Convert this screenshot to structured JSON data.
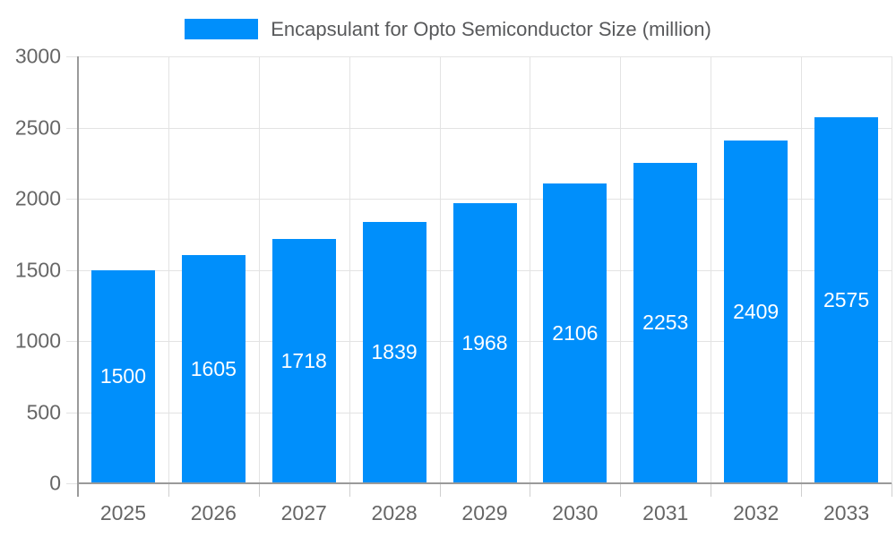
{
  "chart_data": {
    "type": "bar",
    "title": "Encapsulant for Opto Semiconductor Size (million)",
    "categories": [
      "2025",
      "2026",
      "2027",
      "2028",
      "2029",
      "2030",
      "2031",
      "2032",
      "2033"
    ],
    "values": [
      1500,
      1605,
      1718,
      1839,
      1968,
      2106,
      2253,
      2409,
      2575
    ],
    "xlabel": "",
    "ylabel": "",
    "ylim": [
      0,
      3000
    ],
    "yticks": [
      0,
      500,
      1000,
      1500,
      2000,
      2500,
      3000
    ],
    "grid": true,
    "legend_position": "top",
    "data_labels": "inside-center",
    "colors": {
      "bar": "#008FFB",
      "grid": "#e3e3e3",
      "axis": "#9a9a9a",
      "x_tick": "#cfcfcf",
      "tick_label": "#666666",
      "title": "#58595b",
      "data_label": "#ffffff",
      "background": "#ffffff"
    }
  }
}
